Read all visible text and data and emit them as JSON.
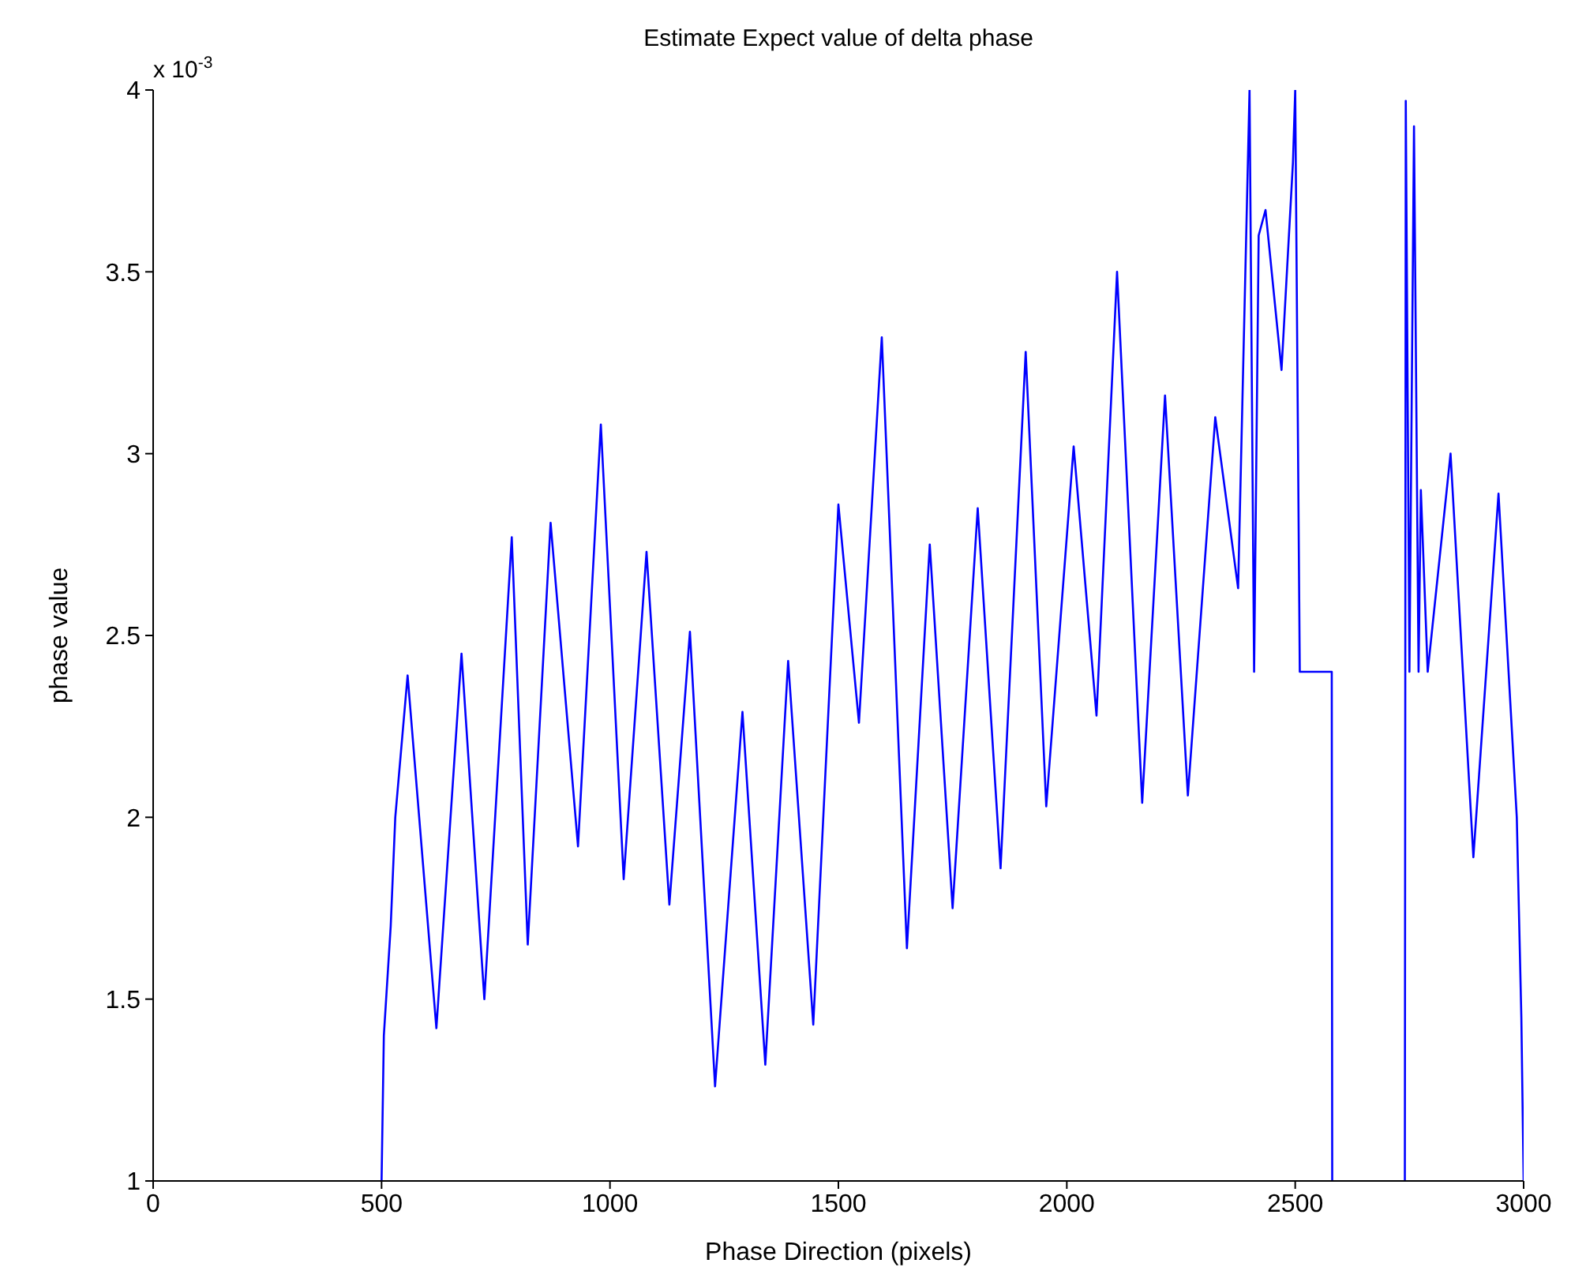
{
  "chart_data": {
    "type": "line",
    "title": "Estimate Expect value of delta phase",
    "xlabel": "Phase Direction (pixels)",
    "ylabel": "phase value",
    "annotations": [
      "x 10$^{-3}$"
    ],
    "x": [
      500,
      505,
      520,
      530,
      557,
      620,
      675,
      725,
      785,
      820,
      870,
      930,
      980,
      1030,
      1080,
      1130,
      1175,
      1230,
      1290,
      1340,
      1390,
      1445,
      1500,
      1545,
      1595,
      1650,
      1700,
      1750,
      1805,
      1855,
      1910,
      1955,
      2015,
      2065,
      2110,
      2165,
      2215,
      2265,
      2325,
      2375,
      2400,
      2410,
      2420,
      2435,
      2470,
      2495,
      2500,
      2510,
      2580,
      2581,
      2660,
      2740,
      2742,
      2750,
      2760,
      2770,
      2775,
      2790,
      2840,
      2890,
      2945,
      2985,
      2995,
      3000
    ],
    "series": [
      {
        "color": "#0000ff",
        "values": [
          1,
          1.4,
          1.7,
          2.0,
          2.39,
          1.42,
          2.45,
          1.5,
          2.77,
          1.65,
          2.81,
          1.92,
          3.08,
          1.83,
          2.73,
          1.76,
          2.51,
          1.26,
          2.29,
          1.32,
          2.43,
          1.43,
          2.86,
          2.26,
          3.32,
          1.64,
          2.75,
          1.75,
          2.85,
          1.86,
          3.28,
          2.03,
          3.02,
          2.28,
          3.5,
          2.04,
          3.16,
          2.06,
          3.1,
          2.63,
          4.0,
          2.4,
          3.6,
          3.67,
          3.23,
          3.8,
          4.0,
          2.4,
          2.4,
          1,
          null,
          1,
          3.97,
          2.4,
          3.9,
          2.4,
          2.9,
          2.4,
          3.0,
          1.89,
          2.89,
          2.0,
          1.45,
          1
        ]
      }
    ],
    "xlim": [
      0,
      3000
    ],
    "xticks": [
      0,
      500,
      1000,
      1500,
      2000,
      2500,
      3000
    ],
    "ylim": [
      1,
      4
    ],
    "yticks": [
      1,
      1.5,
      2,
      2.5,
      3,
      3.5,
      4
    ],
    "grid": false,
    "legend": false,
    "marker": "none",
    "line_style": "solid"
  }
}
